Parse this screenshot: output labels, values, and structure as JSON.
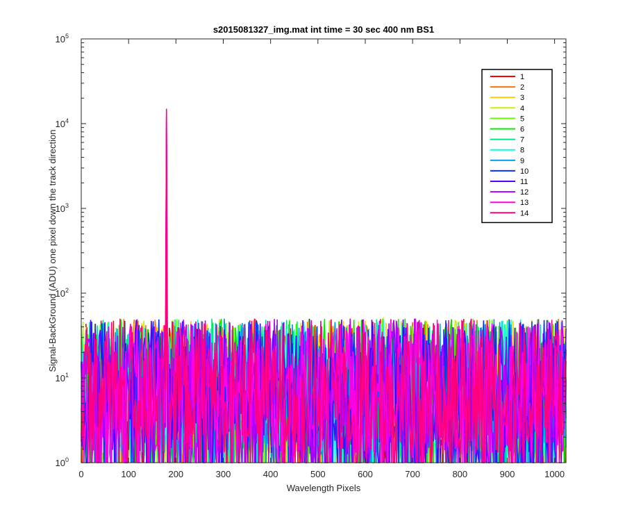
{
  "chart_data": {
    "type": "line",
    "title": "s2015081327_img.mat int time = 30 sec  400 nm BS1",
    "xlabel": "Wavelength Pixels",
    "ylabel": "Signal-BackGround (ADU) one pixel down the track direction",
    "xlim": [
      0,
      1024
    ],
    "ylim": [
      1,
      100000
    ],
    "yscale": "log",
    "xticks": [
      0,
      100,
      200,
      300,
      400,
      500,
      600,
      700,
      800,
      900,
      1000
    ],
    "yticks": [
      {
        "value": 1,
        "base": "10",
        "exp": "0"
      },
      {
        "value": 10,
        "base": "10",
        "exp": "1"
      },
      {
        "value": 100,
        "base": "10",
        "exp": "2"
      },
      {
        "value": 1000,
        "base": "10",
        "exp": "3"
      },
      {
        "value": 10000,
        "base": "10",
        "exp": "4"
      },
      {
        "value": 100000,
        "base": "10",
        "exp": "5"
      }
    ],
    "grid": false,
    "legend_position": "top-right",
    "noise_range": [
      1,
      100
    ],
    "peak": {
      "x": 180,
      "value": 15000
    },
    "series": [
      {
        "name": "1",
        "color": "#ff0000"
      },
      {
        "name": "2",
        "color": "#ff7300"
      },
      {
        "name": "3",
        "color": "#ffcc00"
      },
      {
        "name": "4",
        "color": "#ccf000"
      },
      {
        "name": "5",
        "color": "#66ff00"
      },
      {
        "name": "6",
        "color": "#00f000"
      },
      {
        "name": "7",
        "color": "#00e68a"
      },
      {
        "name": "8",
        "color": "#00ffe6"
      },
      {
        "name": "9",
        "color": "#0099e6"
      },
      {
        "name": "10",
        "color": "#0033ff"
      },
      {
        "name": "11",
        "color": "#5500ff"
      },
      {
        "name": "12",
        "color": "#b000ff"
      },
      {
        "name": "13",
        "color": "#ff00e6"
      },
      {
        "name": "14",
        "color": "#ff0080"
      }
    ]
  }
}
